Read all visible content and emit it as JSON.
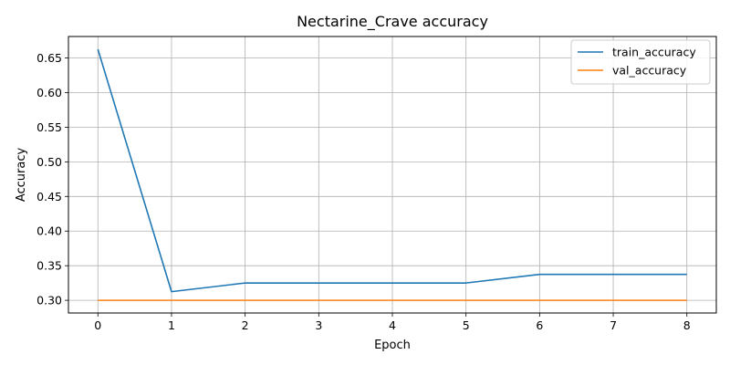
{
  "chart_data": {
    "type": "line",
    "title": "Nectarine_Crave accuracy",
    "xlabel": "Epoch",
    "ylabel": "Accuracy",
    "x": [
      0,
      1,
      2,
      3,
      4,
      5,
      6,
      7,
      8
    ],
    "xlim": [
      -0.4,
      8.4
    ],
    "ylim": [
      0.2817,
      0.681
    ],
    "xticks": [
      "0",
      "1",
      "2",
      "3",
      "4",
      "5",
      "6",
      "7",
      "8"
    ],
    "yticks": [
      "0.30",
      "0.35",
      "0.40",
      "0.45",
      "0.50",
      "0.55",
      "0.60",
      "0.65"
    ],
    "grid": true,
    "legend_position": "top-right",
    "series": [
      {
        "name": "train_accuracy",
        "color": "#1f77b4",
        "values": [
          0.6625,
          0.3125,
          0.325,
          0.325,
          0.325,
          0.325,
          0.3375,
          0.3375,
          0.3375
        ]
      },
      {
        "name": "val_accuracy",
        "color": "#ff7f0e",
        "values": [
          0.3,
          0.3,
          0.3,
          0.3,
          0.3,
          0.3,
          0.3,
          0.3,
          0.3
        ]
      }
    ]
  }
}
